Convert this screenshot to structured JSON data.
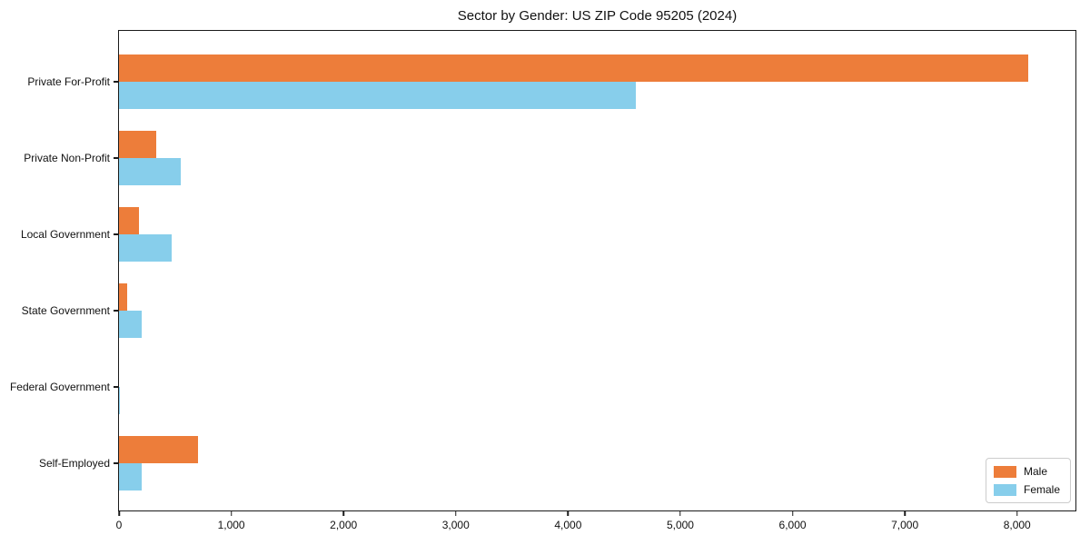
{
  "page": {
    "title": "Sector by Gender: US ZIP Code 95205 (2024)"
  },
  "colors": {
    "male": "#ED7D3A",
    "female": "#87CEEB",
    "axis": "#1a1a1a",
    "legend_border": "#cccccc",
    "text": "#111111"
  },
  "chart_data": {
    "type": "bar",
    "orientation": "horizontal",
    "title": "Sector by Gender: US ZIP Code 95205 (2024)",
    "categories": [
      "Private For-Profit",
      "Private Non-Profit",
      "Local Government",
      "State Government",
      "Federal Government",
      "Self-Employed"
    ],
    "series": [
      {
        "name": "Male",
        "color": "#ED7D3A",
        "values": [
          8100,
          330,
          180,
          75,
          0,
          700
        ]
      },
      {
        "name": "Female",
        "color": "#87CEEB",
        "values": [
          4600,
          550,
          470,
          200,
          10,
          200
        ]
      }
    ],
    "xlabel": "",
    "ylabel": "",
    "xlim": [
      0,
      8520
    ],
    "xticks": [
      0,
      1000,
      2000,
      3000,
      4000,
      5000,
      6000,
      7000,
      8000
    ],
    "xtick_labels": [
      "0",
      "1,000",
      "2,000",
      "3,000",
      "4,000",
      "5,000",
      "6,000",
      "7,000",
      "8,000"
    ],
    "grid": false,
    "legend_position": "lower right"
  }
}
